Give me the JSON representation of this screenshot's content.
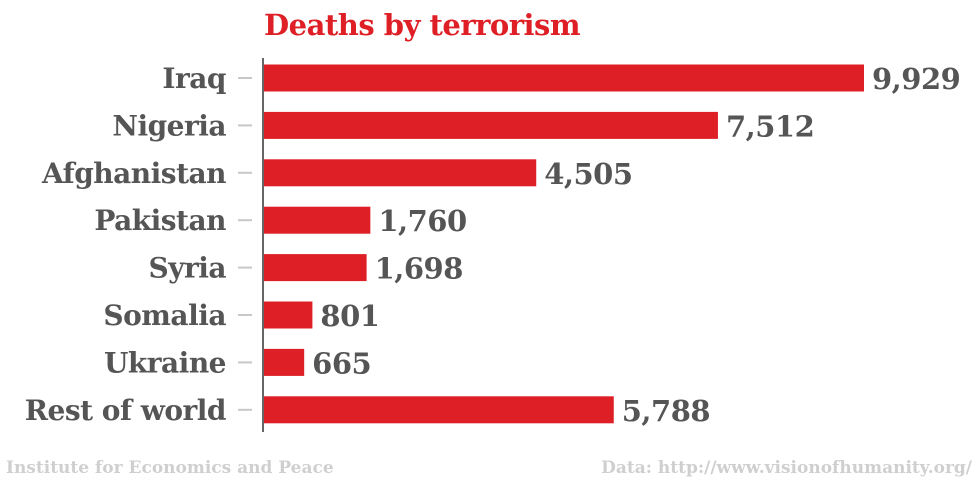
{
  "chart_data": {
    "type": "bar",
    "orientation": "horizontal",
    "title": "Deaths by terrorism",
    "categories": [
      "Iraq",
      "Nigeria",
      "Afghanistan",
      "Pakistan",
      "Syria",
      "Somalia",
      "Ukraine",
      "Rest of world"
    ],
    "values": [
      9929,
      7512,
      4505,
      1760,
      1698,
      801,
      665,
      5788
    ],
    "value_labels": [
      "9,929",
      "7,512",
      "4,505",
      "1,760",
      "1,698",
      "801",
      "665",
      "5,788"
    ],
    "xlim": [
      0,
      9929
    ],
    "grid": false,
    "bar_color": "#df1f26",
    "text_color": "#555555"
  },
  "footer": {
    "source": "Institute for Economics and Peace",
    "data": "Data: http://www.visionofhumanity.org/"
  }
}
